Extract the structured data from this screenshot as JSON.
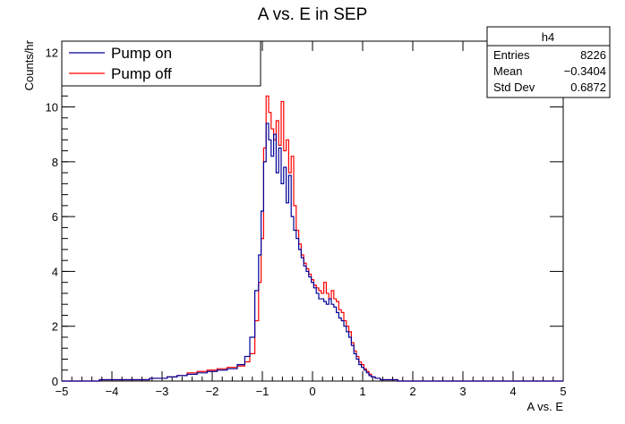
{
  "chart_data": {
    "type": "line",
    "title": "A vs. E in SEP",
    "xlabel": "A vs. E",
    "ylabel": "Counts/hr",
    "xlim": [
      -5,
      5
    ],
    "ylim": [
      0,
      12.4
    ],
    "x_ticks": [
      -5,
      -4,
      -3,
      -2,
      -1,
      0,
      1,
      2,
      3,
      4,
      5
    ],
    "x_tick_labels": [
      "−5",
      "−4",
      "−3",
      "−2",
      "−1",
      "0",
      "1",
      "2",
      "3",
      "4",
      "5"
    ],
    "y_ticks": [
      0,
      2,
      4,
      6,
      8,
      10,
      12
    ],
    "y_tick_labels": [
      "0",
      "2",
      "4",
      "6",
      "8",
      "10",
      "12"
    ],
    "grid": false,
    "legend_position": "top-left",
    "series": [
      {
        "name": "Pump on",
        "color": "#000099",
        "x": [
          -5.0,
          -4.5,
          -4.0,
          -3.5,
          -3.0,
          -2.8,
          -2.6,
          -2.4,
          -2.2,
          -2.0,
          -1.8,
          -1.6,
          -1.4,
          -1.3,
          -1.2,
          -1.1,
          -1.05,
          -1.0,
          -0.95,
          -0.9,
          -0.85,
          -0.8,
          -0.75,
          -0.7,
          -0.65,
          -0.6,
          -0.55,
          -0.5,
          -0.45,
          -0.4,
          -0.35,
          -0.3,
          -0.25,
          -0.2,
          -0.15,
          -0.1,
          -0.05,
          0.0,
          0.05,
          0.1,
          0.15,
          0.2,
          0.25,
          0.3,
          0.35,
          0.4,
          0.45,
          0.5,
          0.55,
          0.6,
          0.65,
          0.7,
          0.75,
          0.8,
          0.85,
          0.9,
          0.95,
          1.0,
          1.05,
          1.1,
          1.15,
          1.2,
          1.3,
          1.4,
          1.5,
          1.6,
          1.8,
          2.0,
          2.5,
          3.0,
          3.5,
          4.0,
          4.5,
          5.0
        ],
        "y": [
          0.0,
          0.0,
          0.05,
          0.05,
          0.1,
          0.15,
          0.2,
          0.25,
          0.3,
          0.35,
          0.4,
          0.45,
          0.6,
          0.9,
          1.6,
          3.3,
          4.6,
          6.2,
          8.0,
          9.4,
          8.8,
          8.2,
          9.0,
          7.6,
          8.5,
          7.2,
          7.8,
          6.5,
          7.5,
          6.0,
          5.5,
          5.2,
          4.8,
          4.5,
          4.2,
          4.0,
          3.8,
          3.6,
          3.4,
          3.2,
          3.0,
          3.0,
          2.9,
          2.8,
          3.0,
          2.8,
          2.7,
          2.5,
          2.3,
          2.2,
          2.0,
          1.8,
          1.6,
          1.3,
          1.0,
          0.8,
          0.6,
          0.5,
          0.4,
          0.3,
          0.2,
          0.15,
          0.1,
          0.05,
          0.05,
          0.05,
          0.0,
          0.0,
          0.0,
          0.0,
          0.0,
          0.0,
          0.0,
          0.0
        ]
      },
      {
        "name": "Pump off",
        "color": "#ff0000",
        "x": [
          -5.0,
          -4.5,
          -4.0,
          -3.5,
          -3.0,
          -2.8,
          -2.6,
          -2.4,
          -2.2,
          -2.0,
          -1.8,
          -1.6,
          -1.4,
          -1.3,
          -1.2,
          -1.1,
          -1.05,
          -1.0,
          -0.95,
          -0.9,
          -0.85,
          -0.8,
          -0.75,
          -0.7,
          -0.65,
          -0.6,
          -0.55,
          -0.5,
          -0.45,
          -0.4,
          -0.35,
          -0.3,
          -0.25,
          -0.2,
          -0.15,
          -0.1,
          -0.05,
          0.0,
          0.05,
          0.1,
          0.15,
          0.2,
          0.25,
          0.3,
          0.35,
          0.4,
          0.45,
          0.5,
          0.55,
          0.6,
          0.65,
          0.7,
          0.75,
          0.8,
          0.85,
          0.9,
          0.95,
          1.0,
          1.05,
          1.1,
          1.15,
          1.2,
          1.3,
          1.4,
          1.5,
          1.6,
          1.8,
          2.0,
          2.5,
          3.0,
          3.5,
          4.0,
          4.5,
          5.0
        ],
        "y": [
          0.0,
          0.0,
          0.05,
          0.05,
          0.1,
          0.15,
          0.2,
          0.3,
          0.35,
          0.4,
          0.45,
          0.5,
          0.55,
          0.7,
          1.0,
          2.2,
          3.6,
          5.2,
          8.5,
          10.4,
          9.8,
          9.2,
          8.8,
          9.5,
          8.6,
          10.2,
          8.4,
          8.8,
          7.6,
          8.2,
          6.4,
          5.5,
          5.0,
          4.6,
          4.3,
          4.1,
          3.9,
          3.7,
          3.5,
          3.4,
          3.3,
          3.2,
          3.6,
          3.2,
          3.0,
          3.3,
          3.0,
          2.9,
          2.6,
          2.5,
          2.2,
          2.0,
          1.8,
          1.4,
          1.1,
          0.9,
          0.7,
          0.6,
          0.45,
          0.35,
          0.25,
          0.15,
          0.1,
          0.05,
          0.05,
          0.05,
          0.0,
          0.0,
          0.0,
          0.0,
          0.0,
          0.0,
          0.0,
          0.0
        ]
      }
    ],
    "stats_box": {
      "title": "h4",
      "rows": [
        {
          "label": "Entries",
          "value": "8226"
        },
        {
          "label": "Mean",
          "value": "−0.3404"
        },
        {
          "label": "Std Dev",
          "value": "0.6872"
        }
      ]
    }
  }
}
